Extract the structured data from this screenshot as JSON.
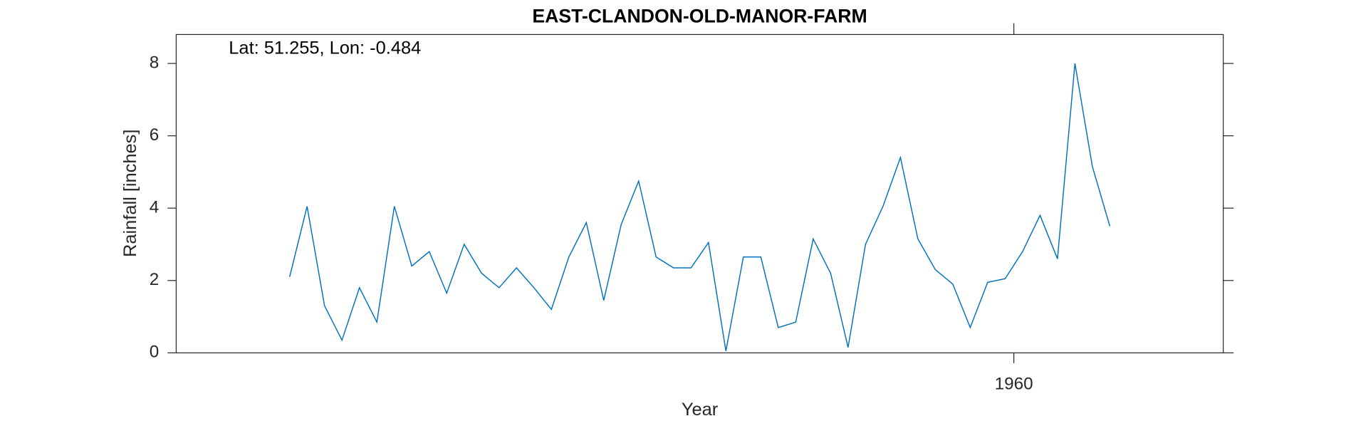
{
  "chart_data": {
    "type": "line",
    "title": "EAST-CLANDON-OLD-MANOR-FARM",
    "annotation": "Lat: 51.255, Lon: -0.484",
    "xlabel": "Year",
    "ylabel": "Rainfall [inches]",
    "x": [
      1918.5,
      1919.5,
      1920.5,
      1921.5,
      1922.5,
      1923.5,
      1924.5,
      1925.5,
      1926.5,
      1927.5,
      1928.5,
      1929.5,
      1930.5,
      1931.5,
      1932.5,
      1933.5,
      1934.5,
      1935.5,
      1936.5,
      1937.5,
      1938.5,
      1939.5,
      1940.5,
      1941.5,
      1942.5,
      1943.5,
      1944.5,
      1945.5,
      1946.5,
      1947.5,
      1948.5,
      1949.5,
      1950.5,
      1951.5,
      1952.5,
      1953.5,
      1954.5,
      1955.5,
      1956.5,
      1957.5,
      1958.5,
      1959.5,
      1960.5,
      1961.5,
      1962.5,
      1963.5,
      1964.5,
      1965.5
    ],
    "series": [
      {
        "name": "Rainfall",
        "color": "#0072bd",
        "values": [
          2.1,
          4.05,
          1.3,
          0.35,
          1.8,
          0.85,
          4.05,
          2.4,
          2.8,
          1.65,
          3.0,
          2.2,
          1.8,
          2.35,
          1.8,
          1.2,
          2.65,
          3.6,
          1.45,
          3.55,
          4.75,
          2.65,
          2.35,
          2.35,
          3.05,
          0.05,
          2.65,
          2.65,
          0.7,
          0.85,
          3.15,
          2.2,
          0.15,
          3.0,
          4.05,
          5.4,
          3.15,
          2.3,
          1.9,
          0.7,
          1.95,
          2.05,
          2.8,
          3.8,
          2.6,
          8.0,
          5.15,
          3.5
        ]
      }
    ],
    "xlim": [
      1912,
      1972
    ],
    "xticks": [
      1960
    ],
    "ylim": [
      0,
      8.8
    ],
    "yticks": [
      0,
      2,
      4,
      6,
      8
    ]
  }
}
